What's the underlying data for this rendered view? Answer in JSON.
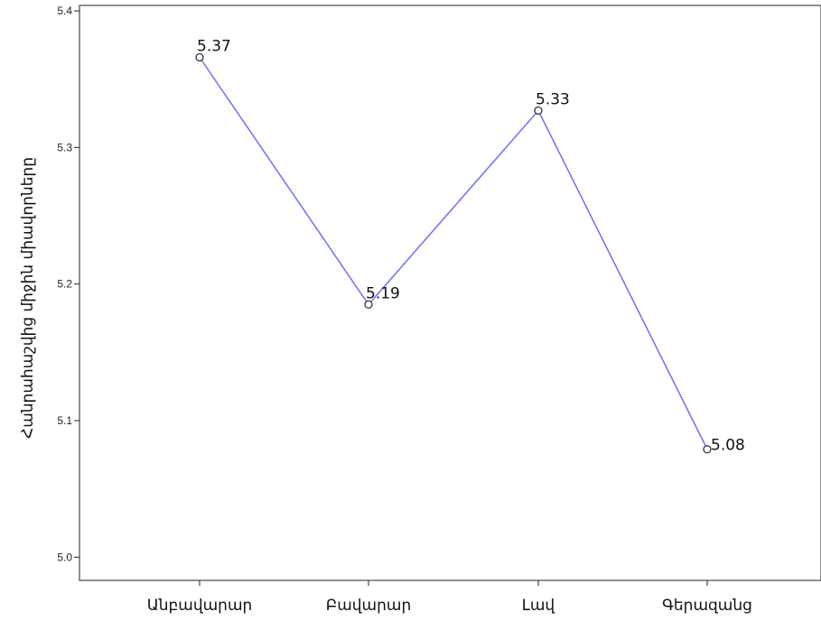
{
  "chart_data": {
    "type": "line",
    "title": "",
    "xlabel": "",
    "ylabel": "Հանրահաշվից միջին միավորները",
    "categories": [
      "Անբավարար",
      "Բավարար",
      "Լավ",
      "Գերազանց"
    ],
    "series": [
      {
        "values": [
          5.366,
          5.185,
          5.327,
          5.079
        ],
        "labels": [
          "5.37",
          "5.19",
          "5.33",
          "5.08"
        ],
        "color": "#6f6ff7"
      }
    ],
    "ylim": [
      4.983,
      5.404
    ],
    "yticks": [
      5.0,
      5.1,
      5.2,
      5.3,
      5.4
    ],
    "ytick_labels": [
      "5.0",
      "5.1",
      "5.2",
      "5.3",
      "5.4"
    ],
    "grid": false,
    "marker": "open-circle"
  }
}
